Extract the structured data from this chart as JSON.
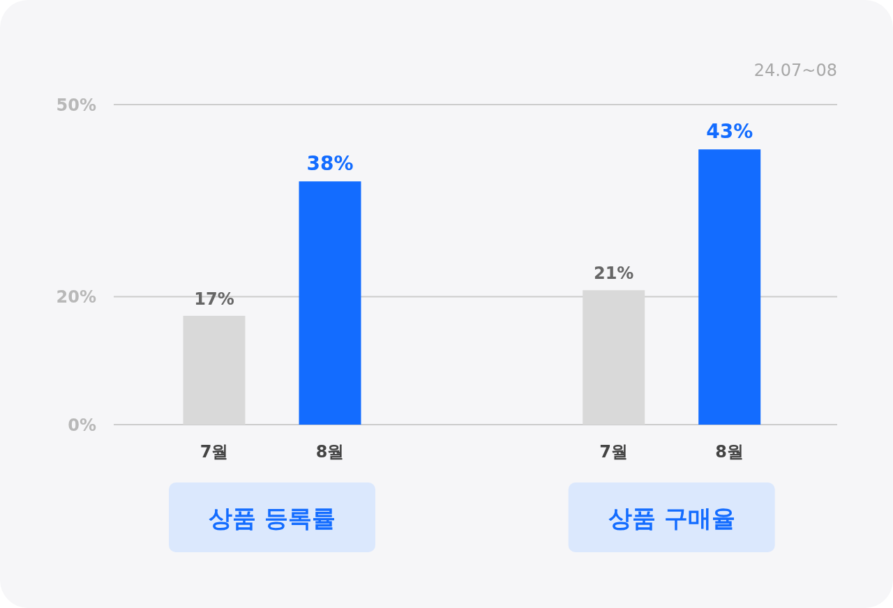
{
  "chart_data": {
    "type": "bar",
    "categories": [
      "7월",
      "8월",
      "7월",
      "8월"
    ],
    "values": [
      17,
      38,
      21,
      43
    ],
    "colors": [
      "#d9d9d9",
      "#136cff",
      "#d9d9d9",
      "#136cff"
    ],
    "ylim": [
      0,
      50
    ],
    "yticks": [
      {
        "value": 0,
        "label": "0%"
      },
      {
        "value": 20,
        "label": "20%"
      },
      {
        "value": 50,
        "label": "50%"
      }
    ],
    "grid": "y",
    "value_labels": [
      "17%",
      "38%",
      "21%",
      "43%"
    ],
    "annotations": [
      "24.07~08",
      "상품 등록률",
      "상품 구매율"
    ]
  }
}
